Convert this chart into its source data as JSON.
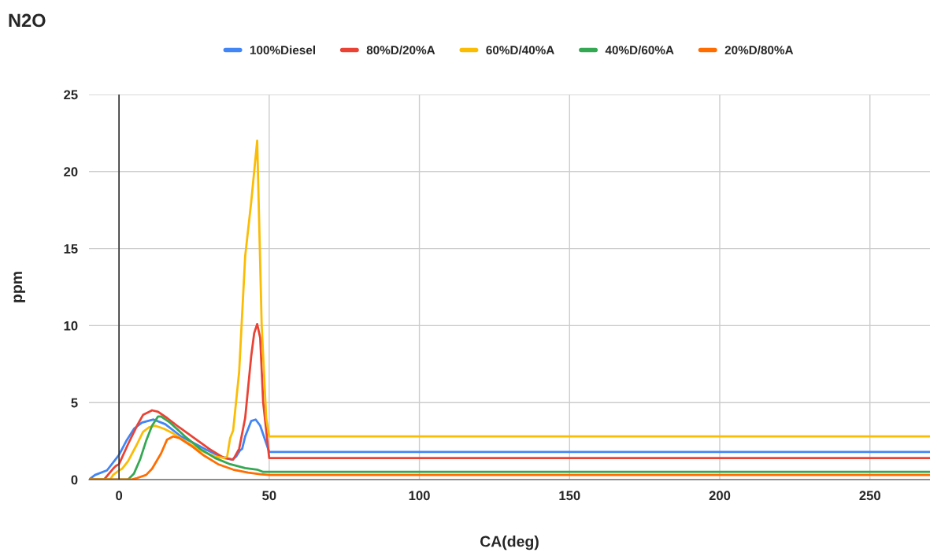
{
  "chart_data": {
    "type": "line",
    "title": "N2O",
    "xlabel": "CA(deg)",
    "ylabel": "ppm",
    "xlim": [
      -10,
      270
    ],
    "ylim": [
      0,
      25
    ],
    "xticks": [
      0,
      50,
      100,
      150,
      200,
      250
    ],
    "yticks": [
      0,
      5,
      10,
      15,
      20,
      25
    ],
    "grid": true,
    "legend": "top",
    "line_style": "solid",
    "marker": "none",
    "ref_lines": [
      {
        "axis": "x",
        "value": 0,
        "color": "#333333"
      }
    ],
    "series": [
      {
        "name": "100%Diesel",
        "color": "#4285f4",
        "x": [
          -10,
          -8,
          -4,
          0,
          2.4,
          5,
          7.6,
          11.5,
          15.4,
          20.7,
          28.5,
          33.8,
          37.7,
          39,
          40.3,
          41,
          42,
          44,
          45.5,
          47,
          50,
          270
        ],
        "values": [
          0,
          0.3,
          0.6,
          1.6,
          2.5,
          3.3,
          3.7,
          3.9,
          3.6,
          2.8,
          2.0,
          1.5,
          1.3,
          1.5,
          1.9,
          2.0,
          2.8,
          3.8,
          3.9,
          3.5,
          1.8,
          1.8
        ]
      },
      {
        "name": "80%D/20%A",
        "color": "#ea4335",
        "x": [
          -10,
          -5,
          -2,
          -1,
          0,
          3,
          6,
          8,
          10,
          11,
          13,
          16,
          20,
          25,
          30,
          35,
          38,
          40,
          42,
          44,
          45,
          46,
          47,
          48,
          50,
          270
        ],
        "values": [
          0,
          0,
          0.7,
          0.9,
          1.0,
          2.3,
          3.5,
          4.2,
          4.4,
          4.5,
          4.4,
          4.0,
          3.4,
          2.7,
          2.0,
          1.4,
          1.3,
          2.0,
          4.0,
          8.0,
          9.5,
          10.1,
          9.2,
          5.0,
          1.4,
          1.4
        ]
      },
      {
        "name": "60%D/40%A",
        "color": "#fbbc04",
        "x": [
          -10,
          -3,
          -2,
          0,
          1,
          3,
          6,
          8,
          10,
          12,
          15,
          18,
          22,
          27,
          32,
          35,
          36,
          37,
          38,
          40,
          42,
          44,
          46,
          47.5,
          49,
          50,
          270
        ],
        "values": [
          0,
          0,
          0.3,
          0.6,
          0.7,
          1.2,
          2.3,
          3.1,
          3.4,
          3.5,
          3.3,
          3.0,
          2.5,
          1.9,
          1.5,
          1.4,
          1.5,
          2.7,
          3.2,
          7.0,
          14.5,
          18,
          22,
          10,
          4,
          2.8,
          2.8
        ]
      },
      {
        "name": "40%D/60%A",
        "color": "#34a853",
        "x": [
          -10,
          3,
          5,
          7,
          9,
          11,
          13,
          14,
          17,
          22,
          27,
          32,
          37,
          42,
          46,
          48,
          50,
          270
        ],
        "values": [
          0,
          0,
          0.4,
          1.3,
          2.5,
          3.5,
          4.1,
          4.1,
          3.7,
          2.8,
          2.0,
          1.4,
          1.0,
          0.75,
          0.65,
          0.5,
          0.5,
          0.5
        ]
      },
      {
        "name": "20%D/80%A",
        "color": "#ff6d01",
        "x": [
          -10,
          4,
          6,
          9,
          11,
          14,
          16,
          18,
          20,
          24,
          28,
          33,
          38,
          43,
          47,
          50,
          270
        ],
        "values": [
          0,
          0,
          0.1,
          0.3,
          0.7,
          1.7,
          2.6,
          2.8,
          2.7,
          2.2,
          1.6,
          1.0,
          0.65,
          0.45,
          0.35,
          0.3,
          0.3
        ]
      }
    ]
  }
}
